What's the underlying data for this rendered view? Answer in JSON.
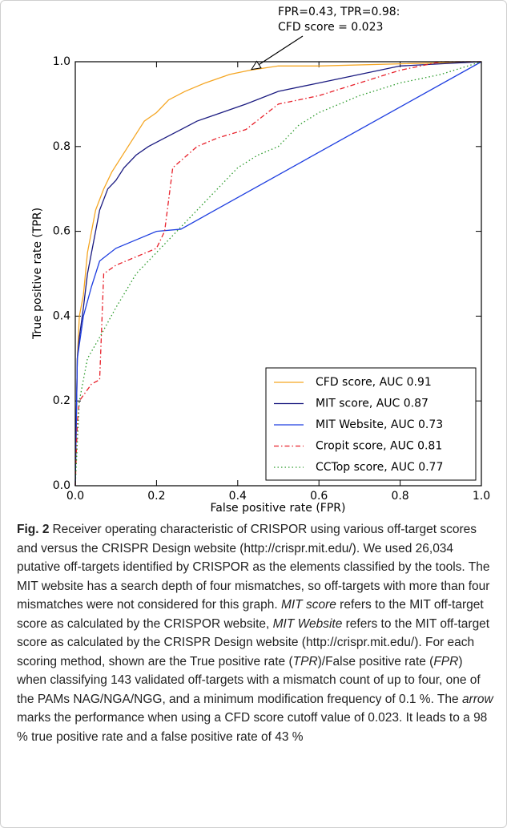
{
  "chart_data": {
    "type": "line",
    "xlabel": "False positive rate (FPR)",
    "ylabel": "True positive rate (TPR)",
    "xlim": [
      0,
      1
    ],
    "ylim": [
      0,
      1
    ],
    "xticks": [
      {
        "value": 0,
        "label": "0.0"
      },
      {
        "value": 0.2,
        "label": "0.2"
      },
      {
        "value": 0.4,
        "label": "0.4"
      },
      {
        "value": 0.6,
        "label": "0.6"
      },
      {
        "value": 0.8,
        "label": "0.8"
      },
      {
        "value": 1,
        "label": "1.0"
      }
    ],
    "yticks": [
      {
        "value": 0,
        "label": "0.0"
      },
      {
        "value": 0.2,
        "label": "0.2"
      },
      {
        "value": 0.4,
        "label": "0.4"
      },
      {
        "value": 0.6,
        "label": "0.6"
      },
      {
        "value": 0.8,
        "label": "0.8"
      },
      {
        "value": 1,
        "label": "1.0"
      }
    ],
    "legend": "lower right",
    "annotation": {
      "text": [
        "FPR=0.43, TPR=0.98:",
        "CFD score = 0.023"
      ],
      "x": 0.43,
      "y": 0.98
    },
    "series": [
      {
        "name": "CFD score, AUC 0.91",
        "color": "#f5a623",
        "dash": "solid",
        "x": [
          0,
          0.005,
          0.01,
          0.02,
          0.03,
          0.04,
          0.05,
          0.07,
          0.09,
          0.11,
          0.13,
          0.15,
          0.17,
          0.2,
          0.23,
          0.27,
          0.32,
          0.38,
          0.43,
          0.5,
          0.6,
          0.8,
          1
        ],
        "values": [
          0,
          0.3,
          0.4,
          0.45,
          0.55,
          0.6,
          0.65,
          0.7,
          0.74,
          0.77,
          0.8,
          0.83,
          0.86,
          0.88,
          0.91,
          0.93,
          0.95,
          0.97,
          0.98,
          0.99,
          0.99,
          0.995,
          1
        ]
      },
      {
        "name": "MIT score, AUC 0.87",
        "color": "#1a1a80",
        "dash": "solid",
        "x": [
          0,
          0.005,
          0.01,
          0.02,
          0.03,
          0.04,
          0.05,
          0.06,
          0.08,
          0.1,
          0.12,
          0.15,
          0.18,
          0.22,
          0.26,
          0.3,
          0.36,
          0.42,
          0.5,
          0.6,
          0.7,
          0.8,
          0.9,
          1
        ],
        "values": [
          0,
          0.3,
          0.35,
          0.42,
          0.5,
          0.55,
          0.6,
          0.65,
          0.7,
          0.72,
          0.75,
          0.78,
          0.8,
          0.82,
          0.84,
          0.86,
          0.88,
          0.9,
          0.93,
          0.95,
          0.97,
          0.99,
          0.995,
          1
        ]
      },
      {
        "name": "MIT Website, AUC 0.73",
        "color": "#1f3fe0",
        "dash": "solid",
        "x": [
          0,
          0.005,
          0.02,
          0.04,
          0.06,
          0.1,
          0.15,
          0.2,
          0.26,
          1
        ],
        "values": [
          0,
          0.3,
          0.4,
          0.47,
          0.53,
          0.56,
          0.58,
          0.6,
          0.605,
          1
        ]
      },
      {
        "name": "Cropit score, AUC 0.81",
        "color": "#e8202a",
        "dash": "dashdot",
        "x": [
          0,
          0.005,
          0.01,
          0.04,
          0.06,
          0.07,
          0.1,
          0.15,
          0.2,
          0.22,
          0.24,
          0.3,
          0.35,
          0.42,
          0.5,
          0.6,
          0.7,
          0.8,
          0.9,
          1
        ],
        "values": [
          0,
          0.15,
          0.2,
          0.24,
          0.25,
          0.5,
          0.52,
          0.54,
          0.56,
          0.6,
          0.75,
          0.8,
          0.82,
          0.84,
          0.9,
          0.92,
          0.95,
          0.98,
          1,
          1
        ]
      },
      {
        "name": "CCTop score, AUC 0.77",
        "color": "#2a9a2a",
        "dash": "dotted",
        "x": [
          0,
          0.01,
          0.03,
          0.06,
          0.1,
          0.15,
          0.2,
          0.25,
          0.3,
          0.35,
          0.4,
          0.45,
          0.5,
          0.55,
          0.6,
          0.7,
          0.8,
          0.9,
          1
        ],
        "values": [
          0,
          0.2,
          0.3,
          0.35,
          0.42,
          0.5,
          0.55,
          0.6,
          0.65,
          0.7,
          0.75,
          0.78,
          0.8,
          0.85,
          0.88,
          0.92,
          0.95,
          0.97,
          1
        ]
      }
    ]
  },
  "caption": {
    "label": "Fig. 2",
    "parts": [
      {
        "text": "Receiver operating characteristic of CRISPOR using various off-target scores and versus the CRISPR Design website (http://crispr.mit.edu/). We used 26,034 putative off-targets identified by CRISPOR as the elements classified by the tools. The MIT website has a search depth of four mismatches, so off-targets with more than four mismatches were not considered for this graph. ",
        "italic": false
      },
      {
        "text": "MIT score",
        "italic": true
      },
      {
        "text": " refers to the MIT off-target score as calculated by the CRISPOR website, ",
        "italic": false
      },
      {
        "text": "MIT Website",
        "italic": true
      },
      {
        "text": " refers to the MIT off-target score as calculated by the CRISPR Design website (http://crispr.mit.edu/). For each scoring method, shown are the True positive rate (",
        "italic": false
      },
      {
        "text": "TPR",
        "italic": true
      },
      {
        "text": ")/False positive rate (",
        "italic": false
      },
      {
        "text": "FPR",
        "italic": true
      },
      {
        "text": ") when classifying 143 validated off-targets with a mismatch count of up to four, one of the PAMs NAG/NGA/NGG, and a minimum modification frequency of 0.1 %. The ",
        "italic": false
      },
      {
        "text": "arrow",
        "italic": true
      },
      {
        "text": " marks the performance when using a CFD score cutoff value of 0.023. It leads to a 98 % true positive rate and a false positive rate of 43 %",
        "italic": false
      }
    ]
  }
}
